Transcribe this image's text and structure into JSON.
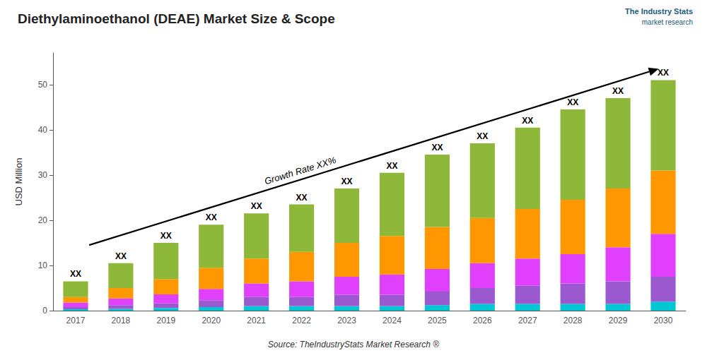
{
  "chart_data": {
    "type": "bar",
    "stacked": true,
    "title": "Diethylaminoethanol (DEAE) Market Size & Scope",
    "ylabel": "USD Million",
    "categories": [
      "2017",
      "2018",
      "2019",
      "2020",
      "2021",
      "2022",
      "2023",
      "2024",
      "2025",
      "2026",
      "2027",
      "2028",
      "2029",
      "2030"
    ],
    "series": [
      {
        "color": "#00c8d2",
        "values": [
          0.3,
          0.4,
          0.6,
          0.8,
          1.0,
          1.0,
          1.0,
          1.0,
          1.2,
          1.5,
          1.5,
          1.5,
          1.5,
          2.0
        ]
      },
      {
        "color": "#9b59d0",
        "values": [
          0.5,
          0.8,
          1.0,
          1.5,
          2.0,
          2.0,
          2.5,
          2.5,
          3.0,
          3.5,
          4.0,
          4.5,
          5.0,
          5.5
        ]
      },
      {
        "color": "#e040fb",
        "values": [
          1.0,
          1.5,
          2.0,
          2.5,
          3.0,
          3.5,
          4.0,
          4.5,
          5.0,
          5.5,
          6.0,
          6.5,
          7.5,
          9.5
        ]
      },
      {
        "color": "#ff9800",
        "values": [
          1.2,
          2.3,
          3.4,
          4.7,
          5.5,
          6.5,
          7.5,
          8.5,
          9.3,
          10.0,
          11.0,
          12.0,
          13.0,
          14.0
        ]
      },
      {
        "color": "#8db83a",
        "values": [
          3.5,
          5.5,
          8.0,
          9.5,
          10.0,
          10.5,
          12.0,
          14.0,
          16.0,
          16.5,
          18.0,
          20.0,
          20.0,
          20.0
        ]
      }
    ],
    "ylim": [
      0,
      57
    ],
    "yticks": [
      0,
      10,
      20,
      30,
      40,
      50
    ],
    "grid": false,
    "annotations": [
      {
        "text": "XX",
        "x": "2017",
        "y": 6.5
      },
      {
        "text": "XX",
        "x": "2018",
        "y": 10.5
      },
      {
        "text": "XX",
        "x": "2019",
        "y": 15.0
      },
      {
        "text": "XX",
        "x": "2020",
        "y": 19.0
      },
      {
        "text": "XX",
        "x": "2021",
        "y": 21.5
      },
      {
        "text": "XX",
        "x": "2022",
        "y": 23.5
      },
      {
        "text": "XX",
        "x": "2023",
        "y": 27.0
      },
      {
        "text": "XX",
        "x": "2024",
        "y": 30.5
      },
      {
        "text": "XX",
        "x": "2025",
        "y": 34.5
      },
      {
        "text": "XX",
        "x": "2026",
        "y": 37.0
      },
      {
        "text": "XX",
        "x": "2027",
        "y": 40.5
      },
      {
        "text": "XX",
        "x": "2028",
        "y": 44.5
      },
      {
        "text": "XX",
        "x": "2029",
        "y": 47.0
      },
      {
        "text": "XX",
        "x": "2030",
        "y": 51.0
      },
      {
        "text": "Growth Rate XX%",
        "x": 5.0,
        "y": 30.0,
        "arrow": {
          "x1": 0.3,
          "y1": 14.5,
          "x2": 12.9,
          "y2": 53.5
        }
      }
    ],
    "source": "Source: TheIndustryStats Market Research ®",
    "logo": [
      "The Industry Stats",
      "market research"
    ]
  }
}
